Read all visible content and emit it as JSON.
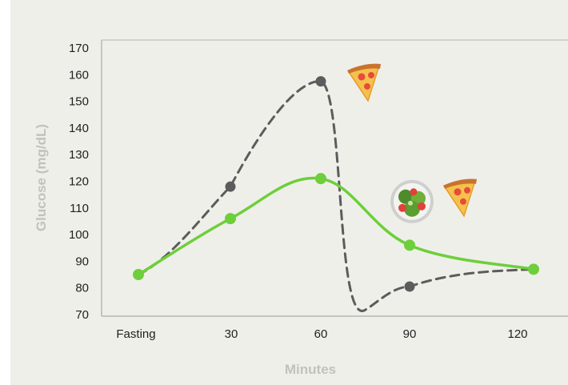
{
  "chart_data": {
    "type": "line",
    "title": "",
    "xlabel": "Minutes",
    "ylabel": "Glucose (mg/dL)",
    "categories": [
      "Fasting",
      "30",
      "60",
      "90",
      "120"
    ],
    "ylim": [
      70,
      170
    ],
    "yticks": [
      70,
      80,
      90,
      100,
      110,
      120,
      130,
      140,
      150,
      160,
      170
    ],
    "grid": false,
    "series": [
      {
        "style": "dashed",
        "color": "#5c5c5c",
        "points": [
          {
            "x": "Fasting",
            "y": 85,
            "marker": false
          },
          {
            "x": "30",
            "y": 118,
            "marker": true
          },
          {
            "x": "60",
            "y": 157.5,
            "marker": true
          },
          {
            "x": "90",
            "y": 80.5,
            "marker": true
          },
          {
            "x": "120",
            "y": 87,
            "marker": false
          }
        ]
      },
      {
        "style": "solid",
        "color": "#6dcf3a",
        "points": [
          {
            "x": "Fasting",
            "y": 85,
            "marker": true
          },
          {
            "x": "30",
            "y": 106,
            "marker": true
          },
          {
            "x": "60",
            "y": 121,
            "marker": true
          },
          {
            "x": "90",
            "y": 96,
            "marker": true
          },
          {
            "x": "120",
            "y": 87,
            "marker": true
          }
        ]
      }
    ],
    "annotations": [
      {
        "icon": "pizza-icon",
        "near": "60",
        "y": 158
      },
      {
        "icon": "salad-icon",
        "near": "90",
        "y": 113
      },
      {
        "icon": "pizza-icon",
        "near": "90",
        "y": 113
      }
    ]
  }
}
